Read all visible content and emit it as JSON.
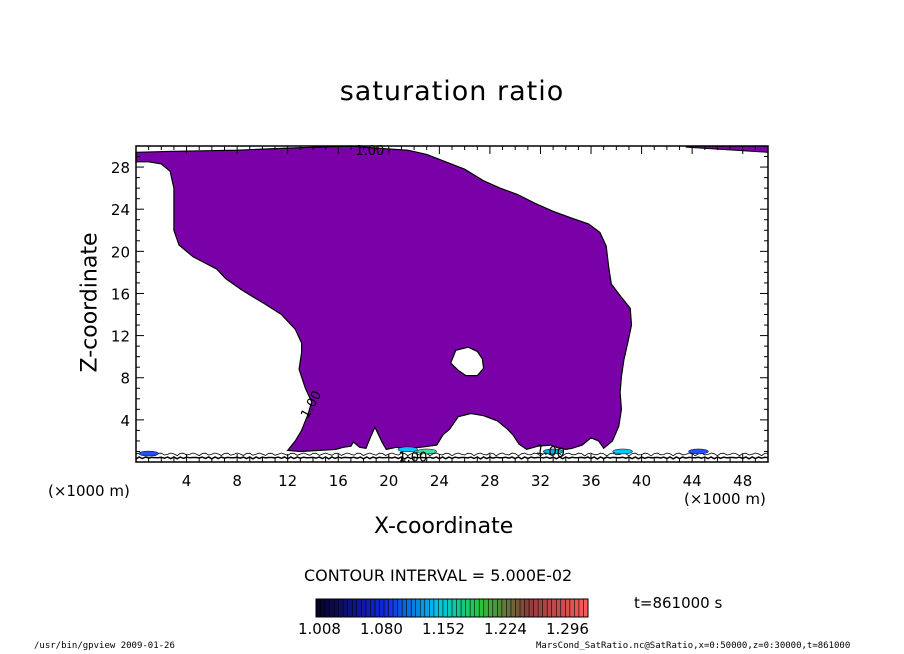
{
  "chart_data": {
    "type": "contour",
    "title": "saturation ratio",
    "xlabel": "X-coordinate",
    "ylabel": "Z-coordinate",
    "x_unit": "(×1000 m)",
    "xlim": [
      0,
      50
    ],
    "ylim": [
      0,
      30
    ],
    "x_ticks": [
      4,
      8,
      12,
      16,
      20,
      24,
      28,
      32,
      36,
      40,
      44,
      48
    ],
    "y_ticks": [
      4,
      8,
      12,
      16,
      20,
      24,
      28
    ],
    "contour_interval_text": "CONTOUR INTERVAL = 5.000E-02",
    "contour_labels": [
      "1.00",
      "1.00",
      "1.00",
      "1.00"
    ],
    "colorbar_ticks": [
      "1.008",
      "1.080",
      "1.152",
      "1.224",
      "1.296"
    ],
    "time_label": "t=861000 s",
    "fill_color": "#7a00a8",
    "region_outline": [
      [
        0,
        29.4
      ],
      [
        3,
        29.5
      ],
      [
        8,
        29.6
      ],
      [
        12,
        29.8
      ],
      [
        17,
        30
      ],
      [
        19,
        29.8
      ],
      [
        21.5,
        29.6
      ],
      [
        23,
        29.2
      ],
      [
        24.5,
        28.5
      ],
      [
        26,
        27.8
      ],
      [
        27.5,
        26.7
      ],
      [
        28.8,
        26.0
      ],
      [
        30.2,
        25.4
      ],
      [
        31.5,
        24.6
      ],
      [
        33,
        23.8
      ],
      [
        34.6,
        23.1
      ],
      [
        35.8,
        22.6
      ],
      [
        36.7,
        21.8
      ],
      [
        37.2,
        20.5
      ],
      [
        37.4,
        18.5
      ],
      [
        37.6,
        16.9
      ],
      [
        38.3,
        15.8
      ],
      [
        39.1,
        14.6
      ],
      [
        39.2,
        13.0
      ],
      [
        38.9,
        11.3
      ],
      [
        38.6,
        9.7
      ],
      [
        38.4,
        8.1
      ],
      [
        38.3,
        6.6
      ],
      [
        38.4,
        5.0
      ],
      [
        38.2,
        3.4
      ],
      [
        37.7,
        2.0
      ],
      [
        37.0,
        1.3
      ],
      [
        36.6,
        2.0
      ],
      [
        36.0,
        2.3
      ],
      [
        35.3,
        1.6
      ],
      [
        34.5,
        1.3
      ],
      [
        34.0,
        1.2
      ],
      [
        33.5,
        1.3
      ],
      [
        32.8,
        1.6
      ],
      [
        31.8,
        1.5
      ],
      [
        30.9,
        1.2
      ],
      [
        30.3,
        1.7
      ],
      [
        29.8,
        2.6
      ],
      [
        29.4,
        3.1
      ],
      [
        28.6,
        3.9
      ],
      [
        27.5,
        4.4
      ],
      [
        26.5,
        4.6
      ],
      [
        25.5,
        4.3
      ],
      [
        24.8,
        3.1
      ],
      [
        24.3,
        2.6
      ],
      [
        23.8,
        1.6
      ],
      [
        22.5,
        1.4
      ],
      [
        21.2,
        1.3
      ],
      [
        20.6,
        1.4
      ],
      [
        19.8,
        1.2
      ],
      [
        19.5,
        1.8
      ],
      [
        18.9,
        3.3
      ],
      [
        18.6,
        2.5
      ],
      [
        18.2,
        1.3
      ],
      [
        17.7,
        1.4
      ],
      [
        17.2,
        1.9
      ],
      [
        17.0,
        1.5
      ],
      [
        16.4,
        1.4
      ],
      [
        15.8,
        1.2
      ],
      [
        14.5,
        1.1
      ],
      [
        13.0,
        1.0
      ],
      [
        12.0,
        1.1
      ],
      [
        12.6,
        2.0
      ],
      [
        13.1,
        3.0
      ],
      [
        13.6,
        4.5
      ],
      [
        13.9,
        5.7
      ],
      [
        13.4,
        7.0
      ],
      [
        12.9,
        8.8
      ],
      [
        13.1,
        10.4
      ],
      [
        13.1,
        11.3
      ],
      [
        12.6,
        12.6
      ],
      [
        11.5,
        14.0
      ],
      [
        10.2,
        15.0
      ],
      [
        8.4,
        16.3
      ],
      [
        7.1,
        17.4
      ],
      [
        6.4,
        18.3
      ],
      [
        4.5,
        19.5
      ],
      [
        3.4,
        20.6
      ],
      [
        3.0,
        22.0
      ],
      [
        3.0,
        24.0
      ],
      [
        3.0,
        26.0
      ],
      [
        2.7,
        27.6
      ],
      [
        2.0,
        28.3
      ],
      [
        1.0,
        28.5
      ],
      [
        0,
        28.5
      ]
    ],
    "region_holes": [
      [
        [
          24.9,
          9.4
        ],
        [
          25.3,
          10.6
        ],
        [
          26.3,
          10.9
        ],
        [
          27.0,
          10.5
        ],
        [
          27.4,
          9.8
        ],
        [
          27.5,
          8.9
        ],
        [
          27.0,
          8.2
        ],
        [
          26.1,
          8.2
        ],
        [
          25.5,
          8.7
        ]
      ]
    ],
    "region_extra": [
      [
        [
          43.5,
          29.9
        ],
        [
          50,
          29.4
        ],
        [
          50,
          30
        ],
        [
          44,
          30
        ]
      ]
    ],
    "source_label": "MarsCond_SatRatio.nc@SatRatio,x=0:50000,z=0:30000,t=861000",
    "program_label": "/usr/bin/gpview   2009-01-26"
  }
}
